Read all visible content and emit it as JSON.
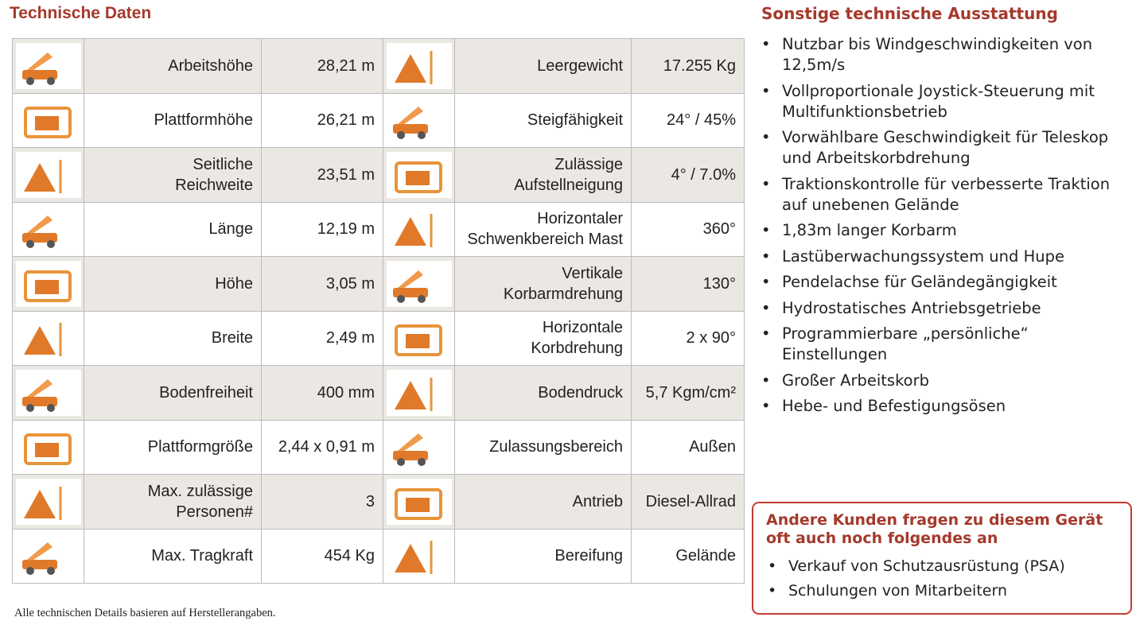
{
  "title": "Technische Daten",
  "table": {
    "rows": [
      [
        "Arbeitshöhe",
        "28,21 m",
        "Leergewicht",
        "17.255 Kg"
      ],
      [
        "Plattformhöhe",
        "26,21 m",
        "Steigfähigkeit",
        "24° / 45%"
      ],
      [
        "Seitliche\nReichweite",
        "23,51 m",
        "Zulässige\nAufstellneigung",
        "4° / 7.0%"
      ],
      [
        "Länge",
        "12,19 m",
        "Horizontaler\nSchwenkbereich Mast",
        "360°"
      ],
      [
        "Höhe",
        "3,05 m",
        "Vertikale\nKorbarmdrehung",
        "130°"
      ],
      [
        "Breite",
        "2,49 m",
        "Horizontale\nKorbdrehung",
        "2 x 90°"
      ],
      [
        "Bodenfreiheit",
        "400 mm",
        "Bodendruck",
        "5,7 Kgm/cm²"
      ],
      [
        "Plattformgröße",
        "2,44 x 0,91 m",
        "Zulassungsbereich",
        "Außen"
      ],
      [
        "Max. zulässige\nPersonen#",
        "3",
        "Antrieb",
        "Diesel-Allrad"
      ],
      [
        "Max. Tragkraft",
        "454 Kg",
        "Bereifung",
        "Gelände"
      ]
    ]
  },
  "footnote": "Alle technischen Details basieren auf Herstellerangaben.",
  "features": {
    "title": "Sonstige technische Ausstattung",
    "items": [
      "Nutzbar bis Windgeschwindigkeiten von 12,5m/s",
      "Vollproportionale Joystick-Steuerung mit Multifunktionsbetrieb",
      "Vorwählbare Geschwindigkeit für Teleskop und Arbeitskorbdrehung",
      "Traktionskontrolle für verbesserte Traktion auf unebenen Gelände",
      "1,83m langer Korbarm",
      "Lastüberwachungssystem und Hupe",
      "Pendelachse für Geländegängigkeit",
      "Hydrostatisches Antriebsgetriebe",
      "Programmierbare „persönliche“ Einstellungen",
      "Großer Arbeitskorb",
      "Hebe- und Befestigungsösen"
    ]
  },
  "box": {
    "title": "Andere Kunden fragen zu diesem Gerät oft auch noch folgendes an",
    "items": [
      "Verkauf von Schutzausrüstung (PSA)",
      "Schulungen von Mitarbeitern"
    ]
  }
}
